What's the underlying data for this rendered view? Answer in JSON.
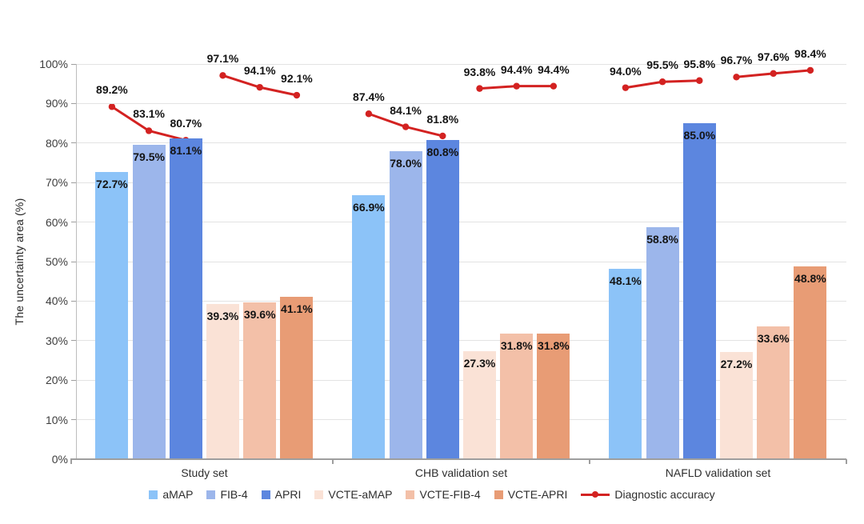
{
  "chart_data": {
    "type": "bar",
    "title": "",
    "xlabel": "",
    "ylabel": "The uncertainty area (%)",
    "ylim": [
      0,
      100
    ],
    "ytick_step": 10,
    "ytick_labels": [
      "0%",
      "10%",
      "20%",
      "30%",
      "40%",
      "50%",
      "60%",
      "70%",
      "80%",
      "90%",
      "100%"
    ],
    "grid": true,
    "legend_position": "bottom",
    "categories": [
      "Study set",
      "CHB validation set",
      "NAFLD validation set"
    ],
    "series": [
      {
        "name": "aMAP",
        "color": "#8cc3f8",
        "values": [
          72.7,
          66.9,
          48.1
        ]
      },
      {
        "name": "FIB-4",
        "color": "#9cb6eb",
        "values": [
          79.5,
          78.0,
          58.8
        ]
      },
      {
        "name": "APRI",
        "color": "#5c86df",
        "values": [
          81.1,
          80.8,
          85.0
        ]
      },
      {
        "name": "VCTE-aMAP",
        "color": "#fae2d6",
        "values": [
          39.3,
          27.3,
          27.2
        ]
      },
      {
        "name": "VCTE-FIB-4",
        "color": "#f3c0a8",
        "values": [
          39.6,
          31.8,
          33.6
        ]
      },
      {
        "name": "VCTE-APRI",
        "color": "#e89c75",
        "values": [
          41.1,
          31.8,
          48.8
        ]
      }
    ],
    "line_overlay": {
      "name": "Diagnostic accuracy",
      "color": "#d32221",
      "style": "two disconnected 3-point segments per category, x positions at bar centers",
      "segments_by_category": [
        {
          "category": "Study set",
          "over_blue_bars": [
            89.2,
            83.1,
            80.7
          ],
          "over_orange_bars": [
            97.1,
            94.1,
            92.1
          ]
        },
        {
          "category": "CHB validation set",
          "over_blue_bars": [
            87.4,
            84.1,
            81.8
          ],
          "over_orange_bars": [
            93.8,
            94.4,
            94.4
          ]
        },
        {
          "category": "NAFLD validation set",
          "over_blue_bars": [
            94.0,
            95.5,
            95.8
          ],
          "over_orange_bars": [
            96.7,
            97.6,
            98.4
          ]
        }
      ]
    }
  },
  "legend": {
    "bar_items": [
      {
        "label": "aMAP",
        "color": "#8cc3f8"
      },
      {
        "label": "FIB-4",
        "color": "#9cb6eb"
      },
      {
        "label": "APRI",
        "color": "#5c86df"
      },
      {
        "label": "VCTE-aMAP",
        "color": "#fae2d6"
      },
      {
        "label": "VCTE-FIB-4",
        "color": "#f3c0a8"
      },
      {
        "label": "VCTE-APRI",
        "color": "#e89c75"
      }
    ],
    "line_item": {
      "label": "Diagnostic accuracy",
      "color": "#d32221"
    }
  },
  "colors": {
    "gridline": "#e3e3e3",
    "axis": "#9e9e9e",
    "y_axis": "#bdbdbd",
    "value_label": "#141414"
  }
}
